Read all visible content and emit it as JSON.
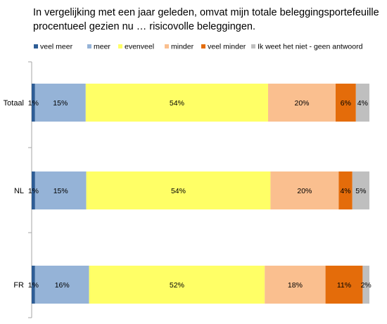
{
  "chart_data": {
    "type": "bar",
    "stacked": true,
    "orientation": "horizontal",
    "title": "In vergelijking met een jaar geleden, omvat mijn totale beleggingsportefeuille procentueel gezien nu … risicovolle beleggingen.",
    "title_lines": [
      "In vergelijking met een jaar geleden, omvat mijn totale beleggingsportefeuille",
      "procentueel gezien nu … risicovolle beleggingen."
    ],
    "xlabel": "",
    "ylabel": "",
    "xlim": [
      0,
      100
    ],
    "unit": "%",
    "legend_position": "top",
    "grid": false,
    "categories": [
      "Totaal",
      "NL",
      "FR"
    ],
    "series": [
      {
        "name": "veel meer",
        "color": "#2e5d95",
        "values": [
          1,
          1,
          1
        ]
      },
      {
        "name": "meer",
        "color": "#95b3d7",
        "values": [
          15,
          15,
          16
        ]
      },
      {
        "name": "evenveel",
        "color": "#ffff66",
        "values": [
          54,
          54,
          52
        ]
      },
      {
        "name": "minder",
        "color": "#fabf8f",
        "values": [
          20,
          20,
          18
        ]
      },
      {
        "name": "veel minder",
        "color": "#e46c0a",
        "values": [
          6,
          4,
          11
        ]
      },
      {
        "name": "Ik weet het niet - geen antwoord",
        "color": "#bfbfbf",
        "values": [
          4,
          5,
          2
        ]
      }
    ]
  }
}
